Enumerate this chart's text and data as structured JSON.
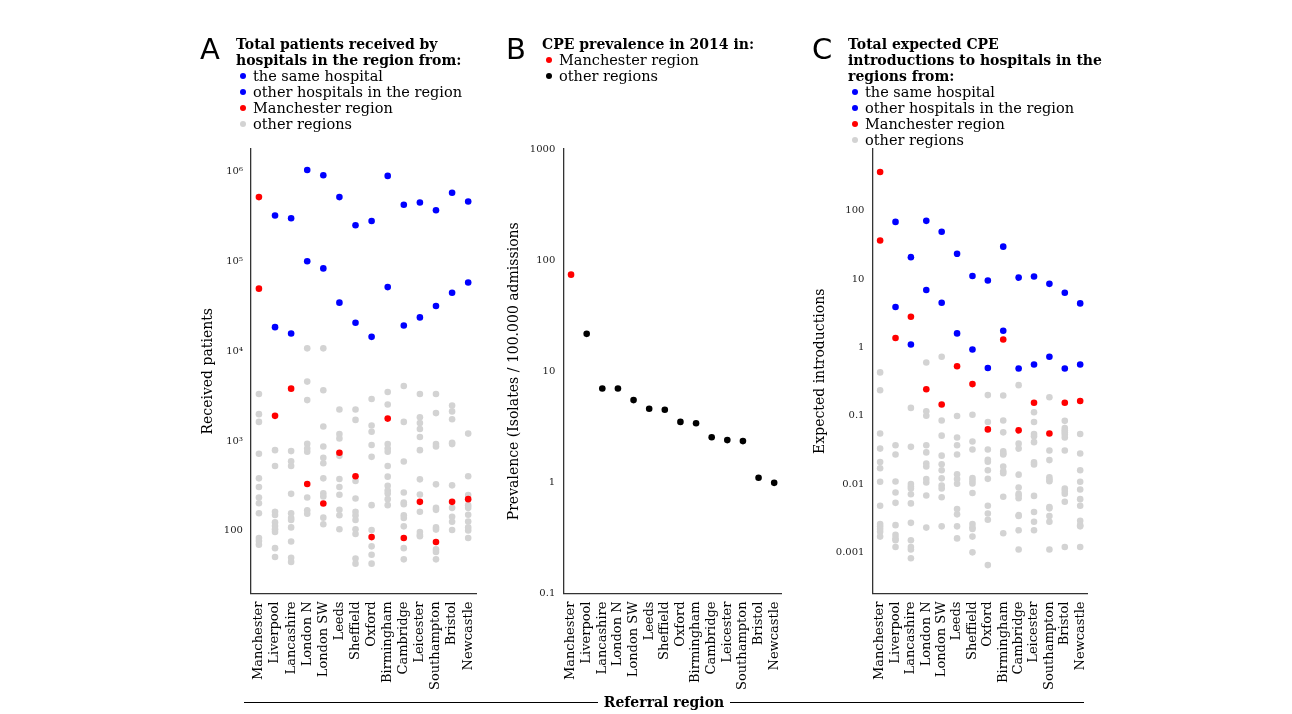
{
  "chart_data": [
    {
      "type": "scatter",
      "title": "Total patients received by hospitals in the region from:",
      "annotations": [
        "A"
      ],
      "ylabel": "Received patients",
      "log": true,
      "grid": false,
      "legend": "top left",
      "marker": "circle",
      "categories": [
        "Manchester",
        "Liverpool",
        "Lancashire",
        "London N",
        "London SW",
        "Leeds",
        "Sheffield",
        "Oxford",
        "Birmingham",
        "Cambridge",
        "Leicester",
        "Southampton",
        "Bristol",
        "Newcastle"
      ],
      "ylim": [
        20,
        1800000
      ],
      "yticks": [
        100,
        {
          "value": 1000,
          "label": "10³"
        },
        {
          "value": 10000,
          "label": "10⁴"
        },
        {
          "value": 100000,
          "label": "10⁵"
        },
        {
          "value": 1000000,
          "label": "10⁶"
        }
      ],
      "series": [
        {
          "name": "the same hospital",
          "color": "#0000ff",
          "colors": [
            "#ff0000",
            "#0000ff",
            "#0000ff",
            "#0000ff",
            "#0000ff",
            "#0000ff",
            "#0000ff",
            "#0000ff",
            "#0000ff",
            "#0000ff",
            "#0000ff",
            "#0000ff",
            "#0000ff",
            "#0000ff"
          ],
          "values": [
            524000,
            326000,
            304000,
            1050000,
            918000,
            524000,
            254000,
            284000,
            902000,
            430000,
            456000,
            374000,
            586000,
            468000
          ]
        },
        {
          "name": "other hospitals in the region",
          "color": "#0000ff",
          "colors": [
            "#ff0000",
            "#0000ff",
            "#0000ff",
            "#0000ff",
            "#0000ff",
            "#0000ff",
            "#0000ff",
            "#0000ff",
            "#0000ff",
            "#0000ff",
            "#0000ff",
            "#0000ff",
            "#0000ff",
            "#0000ff"
          ],
          "values": [
            50000,
            18600,
            15800,
            101000,
            84000,
            34900,
            20800,
            14500,
            52000,
            19400,
            23900,
            32000,
            44900,
            58600
          ]
        },
        {
          "name": "Manchester region",
          "color": "#ff0000",
          "values": [
            null,
            1910,
            3840,
            332,
            201,
            740,
            405,
            85,
            1780,
            83,
            210,
            75,
            210,
            225
          ]
        },
        {
          "name": "other regions",
          "color": "#d3d3d3",
          "x": [
            "Manchester",
            "Manchester",
            "Manchester",
            "Manchester",
            "Manchester",
            "Manchester",
            "Manchester",
            "Manchester",
            "Manchester",
            "Manchester",
            "Manchester",
            "Manchester",
            "Liverpool",
            "Liverpool",
            "Liverpool",
            "Liverpool",
            "Liverpool",
            "Liverpool",
            "Liverpool",
            "Liverpool",
            "Liverpool",
            "Liverpool",
            "Lancashire",
            "Lancashire",
            "Lancashire",
            "Lancashire",
            "Lancashire",
            "Lancashire",
            "Lancashire",
            "Lancashire",
            "Lancashire",
            "Lancashire",
            "Lancashire",
            "London N",
            "London N",
            "London N",
            "London N",
            "London N",
            "London N",
            "London N",
            "London N",
            "London N",
            "London SW",
            "London SW",
            "London SW",
            "London SW",
            "London SW",
            "London SW",
            "London SW",
            "London SW",
            "London SW",
            "London SW",
            "London SW",
            "Leeds",
            "Leeds",
            "Leeds",
            "Leeds",
            "Leeds",
            "Leeds",
            "Leeds",
            "Leeds",
            "Leeds",
            "Leeds",
            "Sheffield",
            "Sheffield",
            "Sheffield",
            "Sheffield",
            "Sheffield",
            "Sheffield",
            "Sheffield",
            "Sheffield",
            "Sheffield",
            "Sheffield",
            "Sheffield",
            "Oxford",
            "Oxford",
            "Oxford",
            "Oxford",
            "Oxford",
            "Oxford",
            "Oxford",
            "Oxford",
            "Oxford",
            "Oxford",
            "Birmingham",
            "Birmingham",
            "Birmingham",
            "Birmingham",
            "Birmingham",
            "Birmingham",
            "Birmingham",
            "Birmingham",
            "Birmingham",
            "Birmingham",
            "Birmingham",
            "Birmingham",
            "Cambridge",
            "Cambridge",
            "Cambridge",
            "Cambridge",
            "Cambridge",
            "Cambridge",
            "Cambridge",
            "Cambridge",
            "Cambridge",
            "Cambridge",
            "Cambridge",
            "Leicester",
            "Leicester",
            "Leicester",
            "Leicester",
            "Leicester",
            "Leicester",
            "Leicester",
            "Leicester",
            "Leicester",
            "Leicester",
            "Leicester",
            "Leicester",
            "Southampton",
            "Southampton",
            "Southampton",
            "Southampton",
            "Southampton",
            "Southampton",
            "Southampton",
            "Southampton",
            "Southampton",
            "Southampton",
            "Southampton",
            "Southampton",
            "Bristol",
            "Bristol",
            "Bristol",
            "Bristol",
            "Bristol",
            "Bristol",
            "Bristol",
            "Bristol",
            "Bristol",
            "Bristol",
            "Newcastle",
            "Newcastle",
            "Newcastle",
            "Newcastle",
            "Newcastle",
            "Newcastle",
            "Newcastle",
            "Newcastle",
            "Newcastle",
            "Newcastle"
          ],
          "values": [
            3340,
            1995,
            1635,
            721,
            384,
            307,
            235,
            203,
            157,
            83,
            77,
            70,
            792,
            528,
            163,
            150,
            124,
            113,
            104,
            97,
            64,
            51,
            773,
            596,
            528,
            258,
            157,
            139,
            132,
            109,
            76,
            50,
            45,
            10800,
            4600,
            2860,
            933,
            827,
            759,
            235,
            169,
            155,
            10800,
            3680,
            1450,
            871,
            650,
            566,
            384,
            261,
            241,
            140,
            118,
            2250,
            1200,
            1070,
            684,
            378,
            307,
            252,
            171,
            149,
            104,
            2250,
            1720,
            358,
            229,
            163,
            148,
            132,
            104,
            92,
            49,
            43,
            2940,
            1490,
            1270,
            902,
            667,
            193,
            102,
            67,
            54,
            43,
            3520,
            2560,
            925,
            827,
            759,
            528,
            401,
            318,
            281,
            261,
            225,
            193,
            4110,
            1635,
            591,
            267,
            206,
            198,
            149,
            139,
            112,
            64,
            48,
            3340,
            1845,
            1590,
            1365,
            1110,
            792,
            374,
            254,
            163,
            97,
            90,
            87,
            3340,
            2050,
            925,
            871,
            329,
            180,
            171,
            109,
            103,
            62,
            58,
            48,
            2490,
            2140,
            1750,
            957,
            925,
            321,
            180,
            143,
            126,
            102,
            1210,
            405,
            250,
            193,
            180,
            151,
            127,
            109,
            101,
            83
          ]
        }
      ]
    },
    {
      "type": "scatter",
      "title": "CPE prevalence in 2014 in:",
      "annotations": [
        "B"
      ],
      "xlabel": "Referral region",
      "ylabel": "Prevalence (Isolates / 100.000 admissions",
      "log": true,
      "grid": false,
      "legend": "top left",
      "marker": "circle",
      "categories": [
        "Manchester",
        "Liverpool",
        "Lancashire",
        "London N",
        "London SW",
        "Leeds",
        "Sheffield",
        "Oxford",
        "Birmingham",
        "Cambridge",
        "Leicester",
        "Southampton",
        "Bristol",
        "Newcastle"
      ],
      "ylim": [
        0.1,
        1000
      ],
      "yticks": [
        0.1,
        1,
        10,
        100,
        1000
      ],
      "series": [
        {
          "name": "Manchester region",
          "color": "#ff0000",
          "values": [
            74,
            null,
            null,
            null,
            null,
            null,
            null,
            null,
            null,
            null,
            null,
            null,
            null,
            null
          ]
        },
        {
          "name": "other regions",
          "color": "#000000",
          "values": [
            null,
            21.7,
            7.0,
            7.0,
            5.5,
            4.6,
            4.5,
            3.5,
            3.4,
            2.55,
            2.4,
            2.35,
            1.1,
            0.99
          ]
        }
      ]
    },
    {
      "type": "scatter",
      "title": "Total expected CPE introductions to hospitals in the regions from:",
      "annotations": [
        "C"
      ],
      "ylabel": "Expected introductions",
      "log": true,
      "grid": false,
      "legend": "top left",
      "marker": "circle",
      "categories": [
        "Manchester",
        "Liverpool",
        "Lancashire",
        "London N",
        "London SW",
        "Leeds",
        "Sheffield",
        "Oxford",
        "Birmingham",
        "Cambridge",
        "Leicester",
        "Southampton",
        "Bristol",
        "Newcastle"
      ],
      "ylim": [
        0.00025,
        800
      ],
      "yticks": [
        0.001,
        0.01,
        0.1,
        1,
        10,
        100
      ],
      "series": [
        {
          "name": "the same hospital",
          "color": "#0000ff",
          "colors": [
            "#ff0000",
            "#0000ff",
            "#0000ff",
            "#0000ff",
            "#0000ff",
            "#0000ff",
            "#0000ff",
            "#0000ff",
            "#0000ff",
            "#0000ff",
            "#0000ff",
            "#0000ff",
            "#0000ff",
            "#0000ff"
          ],
          "values": [
            368,
            68.6,
            20.9,
            71,
            49.2,
            23.4,
            11.1,
            9.5,
            29.8,
            10.5,
            10.9,
            8.5,
            6.3,
            4.4
          ]
        },
        {
          "name": "other hospitals in the region",
          "color": "#0000ff",
          "colors": [
            "#ff0000",
            "#0000ff",
            "#0000ff",
            "#0000ff",
            "#0000ff",
            "#0000ff",
            "#0000ff",
            "#0000ff",
            "#0000ff",
            "#0000ff",
            "#0000ff",
            "#0000ff",
            "#0000ff",
            "#0000ff"
          ],
          "values": [
            36.6,
            3.9,
            1.1,
            6.9,
            4.5,
            1.6,
            0.93,
            0.5,
            1.75,
            0.49,
            0.56,
            0.73,
            0.49,
            0.56
          ]
        },
        {
          "name": "Manchester region",
          "color": "#ff0000",
          "values": [
            null,
            1.37,
            2.8,
            0.244,
            0.146,
            0.53,
            0.29,
            0.063,
            1.3,
            0.061,
            0.155,
            0.055,
            0.155,
            0.164
          ]
        },
        {
          "name": "other regions",
          "color": "#d3d3d3",
          "x": [
            "Manchester",
            "Manchester",
            "Manchester",
            "Manchester",
            "Manchester",
            "Manchester",
            "Manchester",
            "Manchester",
            "Manchester",
            "Manchester",
            "Manchester",
            "Manchester",
            "Manchester",
            "Liverpool",
            "Liverpool",
            "Liverpool",
            "Liverpool",
            "Liverpool",
            "Liverpool",
            "Liverpool",
            "Liverpool",
            "Liverpool",
            "Liverpool",
            "Lancashire",
            "Lancashire",
            "Lancashire",
            "Lancashire",
            "Lancashire",
            "Lancashire",
            "Lancashire",
            "Lancashire",
            "Lancashire",
            "Lancashire",
            "Lancashire",
            "Lancashire",
            "London N",
            "London N",
            "London N",
            "London N",
            "London N",
            "London N",
            "London N",
            "London N",
            "London N",
            "London N",
            "London N",
            "London SW",
            "London SW",
            "London SW",
            "London SW",
            "London SW",
            "London SW",
            "London SW",
            "London SW",
            "London SW",
            "London SW",
            "London SW",
            "Leeds",
            "Leeds",
            "Leeds",
            "Leeds",
            "Leeds",
            "Leeds",
            "Leeds",
            "Leeds",
            "Leeds",
            "Leeds",
            "Leeds",
            "Sheffield",
            "Sheffield",
            "Sheffield",
            "Sheffield",
            "Sheffield",
            "Sheffield",
            "Sheffield",
            "Sheffield",
            "Sheffield",
            "Sheffield",
            "Sheffield",
            "Sheffield",
            "Oxford",
            "Oxford",
            "Oxford",
            "Oxford",
            "Oxford",
            "Oxford",
            "Oxford",
            "Oxford",
            "Oxford",
            "Oxford",
            "Oxford",
            "Birmingham",
            "Birmingham",
            "Birmingham",
            "Birmingham",
            "Birmingham",
            "Birmingham",
            "Birmingham",
            "Birmingham",
            "Birmingham",
            "Birmingham",
            "Birmingham",
            "Cambridge",
            "Cambridge",
            "Cambridge",
            "Cambridge",
            "Cambridge",
            "Cambridge",
            "Cambridge",
            "Cambridge",
            "Cambridge",
            "Cambridge",
            "Cambridge",
            "Cambridge",
            "Leicester",
            "Leicester",
            "Leicester",
            "Leicester",
            "Leicester",
            "Leicester",
            "Leicester",
            "Leicester",
            "Leicester",
            "Leicester",
            "Leicester",
            "Southampton",
            "Southampton",
            "Southampton",
            "Southampton",
            "Southampton",
            "Southampton",
            "Southampton",
            "Southampton",
            "Southampton",
            "Southampton",
            "Southampton",
            "Bristol",
            "Bristol",
            "Bristol",
            "Bristol",
            "Bristol",
            "Bristol",
            "Bristol",
            "Bristol",
            "Bristol",
            "Bristol",
            "Bristol",
            "Bristol",
            "Newcastle",
            "Newcastle",
            "Newcastle",
            "Newcastle",
            "Newcastle",
            "Newcastle",
            "Newcastle",
            "Newcastle",
            "Newcastle",
            "Newcastle",
            "Newcastle"
          ],
          "values": [
            0.43,
            0.236,
            0.055,
            0.033,
            0.021,
            0.017,
            0.0108,
            0.0048,
            0.0026,
            0.0024,
            0.0022,
            0.002,
            0.0017,
            0.037,
            0.027,
            0.0109,
            0.0075,
            0.0053,
            0.0025,
            0.0018,
            0.0016,
            0.0015,
            0.0012,
            0.13,
            0.035,
            0.01,
            0.0092,
            0.0086,
            0.0071,
            0.0052,
            0.0027,
            0.0015,
            0.0012,
            0.0011,
            0.00082,
            0.6,
            0.116,
            0.1,
            0.037,
            0.029,
            0.02,
            0.018,
            0.0118,
            0.0105,
            0.0068,
            0.0023,
            0.73,
            0.085,
            0.051,
            0.026,
            0.0195,
            0.0159,
            0.0121,
            0.0095,
            0.0086,
            0.0064,
            0.0024,
            0.099,
            0.048,
            0.037,
            0.027,
            0.0139,
            0.0118,
            0.0101,
            0.0043,
            0.0036,
            0.0024,
            0.0016,
            0.103,
            0.042,
            0.032,
            0.0122,
            0.0112,
            0.0102,
            0.0074,
            0.0026,
            0.0023,
            0.0022,
            0.0017,
            0.001,
            0.2,
            0.081,
            0.032,
            0.0227,
            0.0212,
            0.0159,
            0.0119,
            0.0048,
            0.0037,
            0.003,
            0.00065,
            0.197,
            0.085,
            0.057,
            0.03,
            0.028,
            0.027,
            0.018,
            0.0154,
            0.0144,
            0.0065,
            0.0019,
            0.28,
            0.039,
            0.033,
            0.0137,
            0.0089,
            0.0072,
            0.0068,
            0.0062,
            0.0035,
            0.0034,
            0.0021,
            0.0011,
            0.112,
            0.081,
            0.054,
            0.05,
            0.041,
            0.0207,
            0.0193,
            0.0067,
            0.0039,
            0.0028,
            0.0021,
            0.186,
            0.031,
            0.0224,
            0.0125,
            0.0115,
            0.011,
            0.0046,
            0.0044,
            0.0034,
            0.0028,
            0.0011,
            0.084,
            0.066,
            0.061,
            0.057,
            0.053,
            0.048,
            0.031,
            0.0086,
            0.0079,
            0.0072,
            0.0055,
            0.0012,
            0.054,
            0.028,
            0.0159,
            0.0108,
            0.0083,
            0.006,
            0.0048,
            0.0029,
            0.0025,
            0.0024,
            0.0012
          ]
        }
      ]
    }
  ]
}
